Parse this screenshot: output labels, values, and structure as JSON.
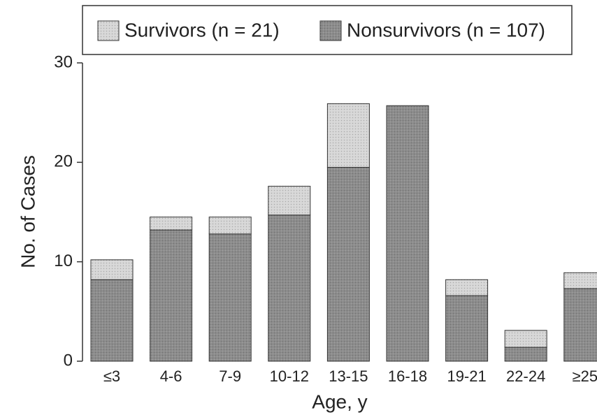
{
  "chart_data": {
    "type": "stacked_bar",
    "x_label": "Age, y",
    "y_label": "No. of Cases",
    "categories": [
      "≤3",
      "4-6",
      "7-9",
      "10-12",
      "13-15",
      "16-18",
      "19-21",
      "22-24",
      "≥25"
    ],
    "series": [
      {
        "name": "Survivors (n = 21)",
        "color": "#d6d6d6",
        "values": [
          2,
          1.3,
          1.7,
          2.9,
          6.4,
          0,
          1.6,
          1.7,
          1.6
        ]
      },
      {
        "name": "Nonsurvivors (n = 107)",
        "color": "#8c8c8c",
        "values": [
          8.2,
          13.2,
          12.8,
          14.7,
          19.5,
          25.7,
          6.6,
          1.4,
          7.3
        ]
      }
    ],
    "ylim": [
      0,
      30
    ],
    "yticks": [
      0,
      10,
      20,
      30
    ]
  }
}
